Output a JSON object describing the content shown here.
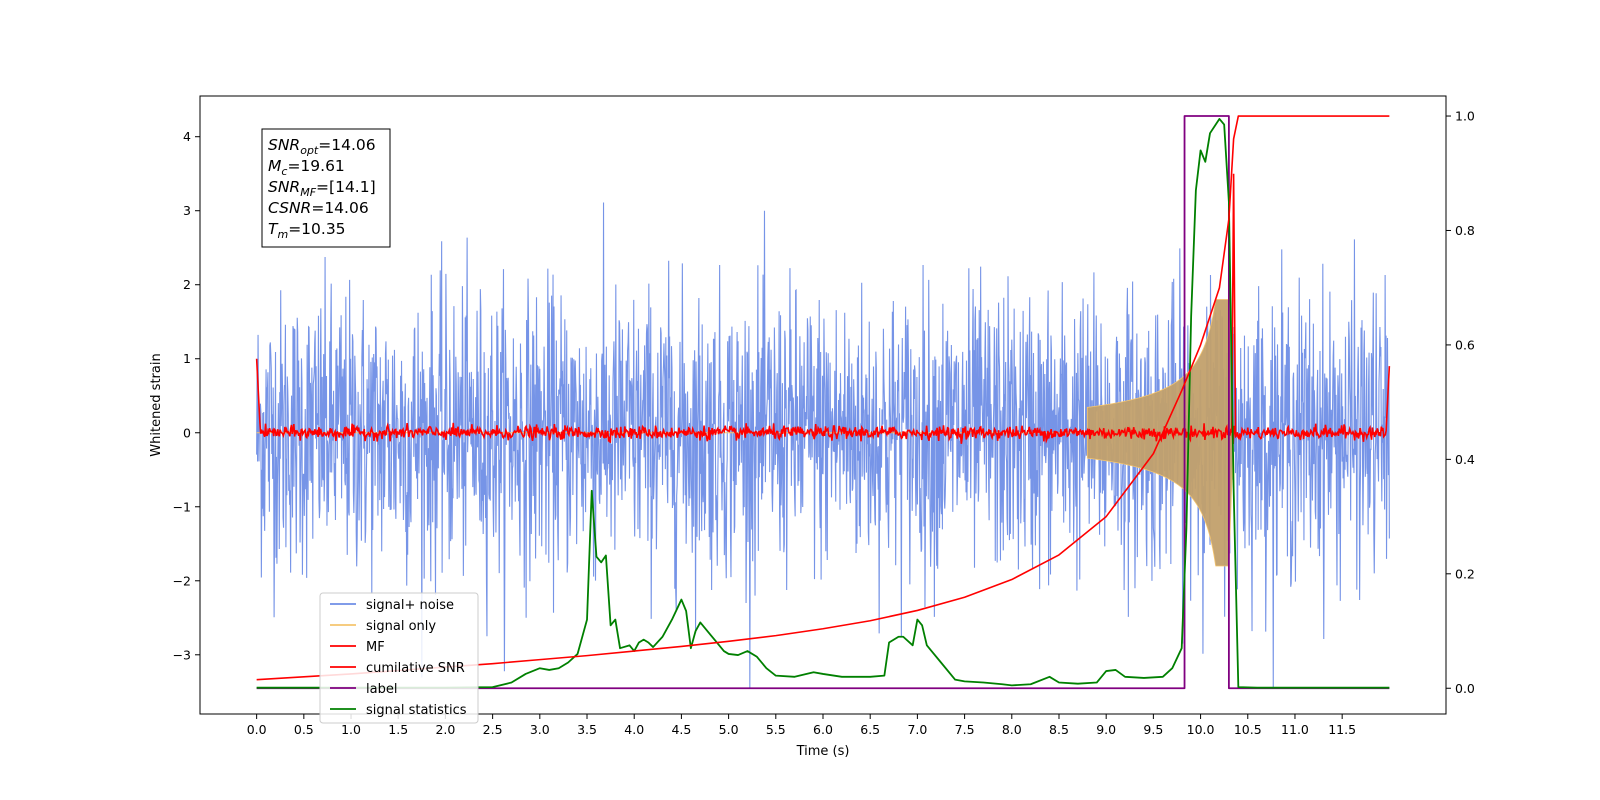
{
  "chart_data": {
    "type": "line",
    "xlabel": "Time (s)",
    "ylabel_left": "Whitened strain",
    "xlim": [
      -0.6,
      12.6
    ],
    "ylim_left": [
      -3.8,
      4.55
    ],
    "ylim_right": [
      -0.045,
      1.035
    ],
    "x_ticks": [
      0.0,
      0.5,
      1.0,
      1.5,
      2.0,
      2.5,
      3.0,
      3.5,
      4.0,
      4.5,
      5.0,
      5.5,
      6.0,
      6.5,
      7.0,
      7.5,
      8.0,
      8.5,
      9.0,
      9.5,
      10.0,
      10.5,
      11.0,
      11.5
    ],
    "x_tick_labels": [
      "0.0",
      "0.5",
      "1.0",
      "1.5",
      "2.0",
      "2.5",
      "3.0",
      "3.5",
      "4.0",
      "4.5",
      "5.0",
      "5.5",
      "6.0",
      "6.5",
      "7.0",
      "7.5",
      "8.0",
      "8.5",
      "9.0",
      "9.5",
      "10.0",
      "10.5",
      "11.0",
      "11.5"
    ],
    "y_ticks_left": [
      -3,
      -2,
      -1,
      0,
      1,
      2,
      3,
      4
    ],
    "y_tick_labels_left": [
      "−3",
      "−2",
      "−1",
      "0",
      "1",
      "2",
      "3",
      "4"
    ],
    "y_ticks_right": [
      0.0,
      0.2,
      0.4,
      0.6,
      0.8,
      1.0
    ],
    "y_tick_labels_right": [
      "0.0",
      "0.2",
      "0.4",
      "0.6",
      "0.8",
      "1.0"
    ],
    "legend_position": "lower-left",
    "legend": [
      {
        "name": "signal+ noise",
        "color": "#6f8ee6"
      },
      {
        "name": "signal only",
        "color": "#f5c56e"
      },
      {
        "name": "MF",
        "color": "#ff0000"
      },
      {
        "name": "cumilative SNR",
        "color": "#ff0000"
      },
      {
        "name": "label",
        "color": "#800080"
      },
      {
        "name": "signal statistics",
        "color": "#008000"
      }
    ],
    "annotation": [
      {
        "base": "SNR",
        "sub": "opt",
        "value": "=14.06"
      },
      {
        "base": "M",
        "sub": "c",
        "value": "=19.61"
      },
      {
        "base": "SNR",
        "sub": "MF",
        "value": "=[14.1]"
      },
      {
        "base": "CSNR",
        "sub": "",
        "value": "=14.06"
      },
      {
        "base": "T",
        "sub": "m",
        "value": "=10.35"
      }
    ],
    "series": [
      {
        "name": "signal+ noise",
        "axis": "left",
        "x_range": [
          0.0,
          12.0
        ],
        "typical_amplitude": 1.8,
        "max_peak": 3.4,
        "min_peak": -3.45
      },
      {
        "name": "signal only",
        "axis": "left",
        "x_range": [
          0.0,
          12.0
        ],
        "chirp_peak_time": 10.3,
        "peak_amplitude": 1.8
      },
      {
        "name": "MF",
        "axis": "left",
        "x_range": [
          0.0,
          12.0
        ],
        "baseline_amplitude": 0.12,
        "peak_time": 10.35,
        "peak_value": 3.5
      },
      {
        "name": "cumilative SNR",
        "axis": "right",
        "x": [
          0.0,
          0.5,
          1.0,
          1.5,
          2.0,
          2.5,
          3.0,
          3.5,
          4.0,
          4.5,
          5.0,
          5.5,
          6.0,
          6.5,
          7.0,
          7.5,
          8.0,
          8.5,
          9.0,
          9.5,
          9.8,
          10.0,
          10.2,
          10.3,
          10.35,
          10.4,
          10.6,
          11.0,
          11.5,
          12.0
        ],
        "y": [
          0.015,
          0.02,
          0.025,
          0.031,
          0.037,
          0.043,
          0.05,
          0.057,
          0.065,
          0.073,
          0.082,
          0.092,
          0.104,
          0.118,
          0.136,
          0.159,
          0.19,
          0.233,
          0.3,
          0.41,
          0.52,
          0.6,
          0.7,
          0.82,
          0.96,
          1.0,
          1.0,
          1.0,
          1.0,
          1.0
        ]
      },
      {
        "name": "label",
        "axis": "right",
        "x": [
          0.0,
          9.83,
          9.83,
          10.3,
          10.3,
          12.0
        ],
        "y": [
          0.0,
          0.0,
          1.0,
          1.0,
          0.0,
          0.0
        ]
      },
      {
        "name": "signal statistics",
        "axis": "right",
        "x": [
          0.0,
          0.5,
          1.0,
          1.5,
          2.0,
          2.5,
          2.7,
          2.85,
          3.0,
          3.1,
          3.2,
          3.3,
          3.4,
          3.5,
          3.55,
          3.6,
          3.65,
          3.7,
          3.75,
          3.8,
          3.85,
          3.95,
          4.0,
          4.05,
          4.1,
          4.15,
          4.2,
          4.3,
          4.4,
          4.5,
          4.55,
          4.6,
          4.65,
          4.7,
          4.75,
          4.85,
          4.95,
          5.0,
          5.1,
          5.2,
          5.3,
          5.4,
          5.5,
          5.7,
          5.9,
          6.0,
          6.2,
          6.5,
          6.65,
          6.7,
          6.8,
          6.85,
          6.95,
          7.0,
          7.05,
          7.1,
          7.15,
          7.25,
          7.4,
          7.5,
          7.7,
          7.9,
          8.0,
          8.2,
          8.4,
          8.5,
          8.7,
          8.9,
          9.0,
          9.1,
          9.2,
          9.4,
          9.6,
          9.7,
          9.8,
          9.85,
          9.9,
          9.95,
          10.0,
          10.05,
          10.1,
          10.2,
          10.25,
          10.3,
          10.35,
          10.4,
          10.6,
          11.0,
          11.5,
          12.0
        ],
        "y": [
          0.001,
          0.001,
          0.001,
          0.001,
          0.001,
          0.002,
          0.01,
          0.025,
          0.035,
          0.032,
          0.035,
          0.045,
          0.06,
          0.12,
          0.345,
          0.23,
          0.22,
          0.232,
          0.11,
          0.12,
          0.07,
          0.075,
          0.065,
          0.08,
          0.085,
          0.08,
          0.072,
          0.09,
          0.12,
          0.155,
          0.135,
          0.07,
          0.1,
          0.115,
          0.105,
          0.085,
          0.065,
          0.06,
          0.058,
          0.065,
          0.055,
          0.035,
          0.022,
          0.02,
          0.028,
          0.025,
          0.02,
          0.02,
          0.022,
          0.08,
          0.09,
          0.09,
          0.075,
          0.12,
          0.11,
          0.075,
          0.065,
          0.045,
          0.015,
          0.012,
          0.01,
          0.007,
          0.005,
          0.007,
          0.02,
          0.01,
          0.008,
          0.01,
          0.03,
          0.032,
          0.02,
          0.018,
          0.02,
          0.035,
          0.07,
          0.28,
          0.65,
          0.87,
          0.94,
          0.92,
          0.97,
          0.995,
          0.985,
          0.85,
          0.35,
          0.002,
          0.001,
          0.001,
          0.001,
          0.001
        ]
      }
    ]
  }
}
